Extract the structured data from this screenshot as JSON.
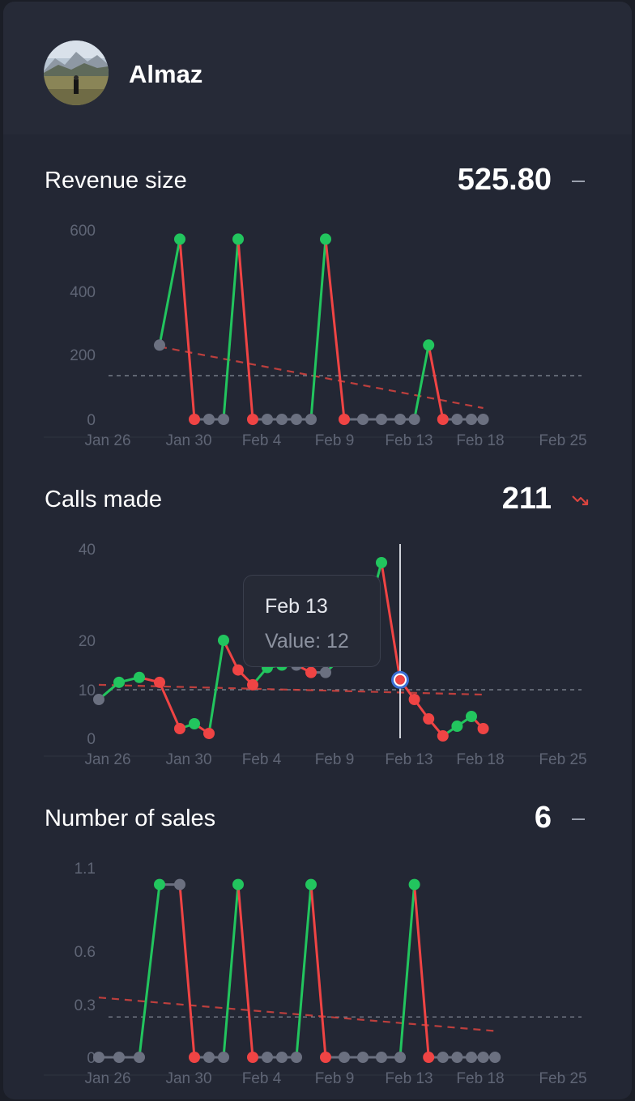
{
  "user": {
    "name": "Almaz"
  },
  "colors": {
    "up": "#22c55e",
    "down": "#ef4444",
    "flat": "#6b7080",
    "trend": "#d9443f",
    "avg": "#8a8f9c"
  },
  "x_ticks": [
    "Jan 26",
    "Jan 30",
    "Feb 4",
    "Feb 9",
    "Feb 13",
    "Feb 18",
    "Feb 25"
  ],
  "chart_data": [
    {
      "type": "line",
      "title": "Revenue size",
      "value": "525.80",
      "trend_icon": "dash-icon",
      "y_ticks": [
        "0",
        "200",
        "400",
        "600"
      ],
      "ylim": [
        0,
        600
      ],
      "x": [
        "Jan 29",
        "Jan 30",
        "Jan 31",
        "Feb 1",
        "Feb 2",
        "Feb 3",
        "Feb 4",
        "Feb 5",
        "Feb 6",
        "Feb 7",
        "Feb 8",
        "Feb 9",
        "Feb 10",
        "Feb 11",
        "Feb 12",
        "Feb 13",
        "Feb 14",
        "Feb 15",
        "Feb 16",
        "Feb 17",
        "Feb 18",
        "Feb 19"
      ],
      "series": [
        {
          "values": [
            230,
            570,
            0,
            0,
            0,
            570,
            0,
            0,
            0,
            0,
            0,
            570,
            0,
            0,
            0,
            0,
            0,
            230,
            0,
            0,
            0,
            0
          ]
        }
      ],
      "average": 135,
      "trendline": [
        225,
        35
      ]
    },
    {
      "type": "line",
      "title": "Calls made",
      "value": "211",
      "trend_icon": "trend-down-icon",
      "y_ticks": [
        "0",
        "10",
        "20",
        "40"
      ],
      "ylim": [
        0,
        40
      ],
      "x": [
        "Jan 26",
        "Jan 27",
        "Jan 28",
        "Jan 29",
        "Jan 30",
        "Jan 31",
        "Feb 1",
        "Feb 2",
        "Feb 3",
        "Feb 4",
        "Feb 5",
        "Feb 6",
        "Feb 7",
        "Feb 8",
        "Feb 9",
        "Feb 10",
        "Feb 11",
        "Feb 12",
        "Feb 13",
        "Feb 14",
        "Feb 15",
        "Feb 16",
        "Feb 17",
        "Feb 18",
        "Feb 19"
      ],
      "series": [
        {
          "values": [
            8,
            11.5,
            12.5,
            11.5,
            2,
            3,
            1,
            20,
            14,
            11,
            14.5,
            15,
            15,
            13.5,
            13.5,
            17,
            22,
            37,
            12,
            8,
            4,
            0.5,
            2.5,
            4.5,
            2
          ]
        }
      ],
      "average": 10,
      "trendline": [
        11,
        9
      ],
      "tooltip": {
        "date": "Feb 13",
        "label": "Value: 12",
        "x": "Feb 13"
      }
    },
    {
      "type": "line",
      "title": "Number of sales",
      "value": "6",
      "trend_icon": "dash-icon",
      "y_ticks": [
        "0",
        "0.3",
        "0.6",
        "1.1"
      ],
      "ylim": [
        0,
        1.1
      ],
      "x": [
        "Jan 26",
        "Jan 27",
        "Jan 28",
        "Jan 29",
        "Jan 30",
        "Jan 31",
        "Feb 1",
        "Feb 2",
        "Feb 3",
        "Feb 4",
        "Feb 5",
        "Feb 6",
        "Feb 7",
        "Feb 8",
        "Feb 9",
        "Feb 10",
        "Feb 11",
        "Feb 12",
        "Feb 13",
        "Feb 14",
        "Feb 15",
        "Feb 16",
        "Feb 17",
        "Feb 18",
        "Feb 19",
        "Feb 20"
      ],
      "series": [
        {
          "values": [
            0,
            0,
            0,
            1,
            1,
            0,
            0,
            0,
            1,
            0,
            0,
            0,
            0,
            1,
            0,
            0,
            0,
            0,
            0,
            1,
            0,
            0,
            0,
            0,
            0,
            0
          ]
        }
      ],
      "average": 0.23,
      "trendline": [
        0.34,
        0.15
      ]
    }
  ]
}
